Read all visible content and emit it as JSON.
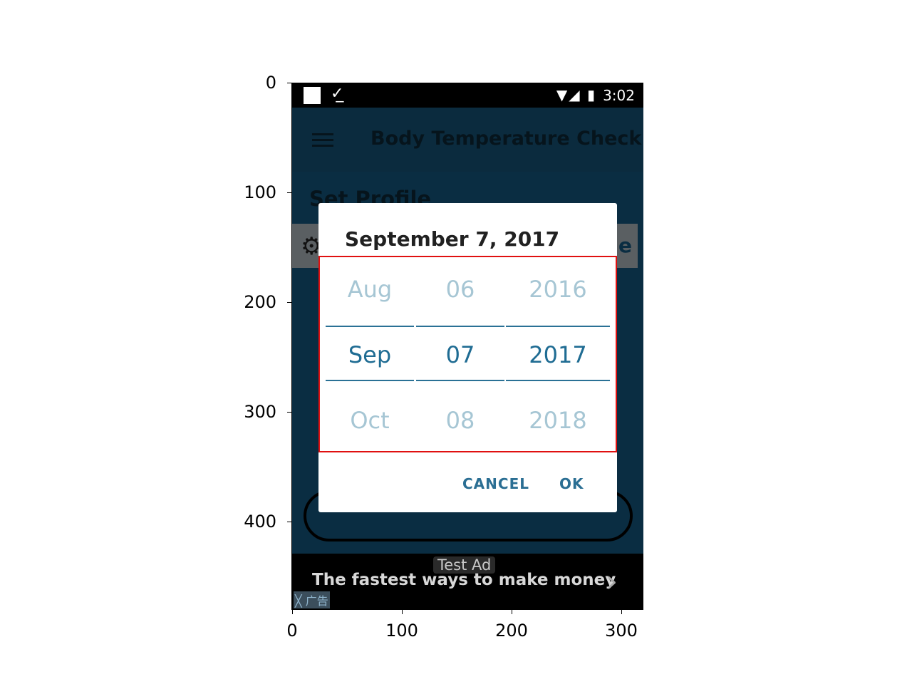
{
  "axes": {
    "y_ticks": [
      "0",
      "100",
      "200",
      "300",
      "400"
    ],
    "x_ticks": [
      "0",
      "100",
      "200",
      "300"
    ]
  },
  "status_bar": {
    "check_icon": "check-download-icon",
    "time": "3:02"
  },
  "toolbar": {
    "title": "Body Temperature Check..."
  },
  "page": {
    "heading": "Set Profile",
    "settings_right_text": "e"
  },
  "dialog": {
    "date_header": "September 7, 2017",
    "months": {
      "prev": "Aug",
      "current": "Sep",
      "next": "Oct"
    },
    "days": {
      "prev": "06",
      "current": "07",
      "next": "08"
    },
    "years": {
      "prev": "2016",
      "current": "2017",
      "next": "2018"
    },
    "cancel_label": "CANCEL",
    "ok_label": "OK"
  },
  "ad": {
    "label": "Test Ad",
    "text": "The fastest ways to make money",
    "close_text": "╳ 广告"
  },
  "colors": {
    "accent": "#1f6c93",
    "app_background": "#0a2d42",
    "highlight_border": "#e01010"
  }
}
